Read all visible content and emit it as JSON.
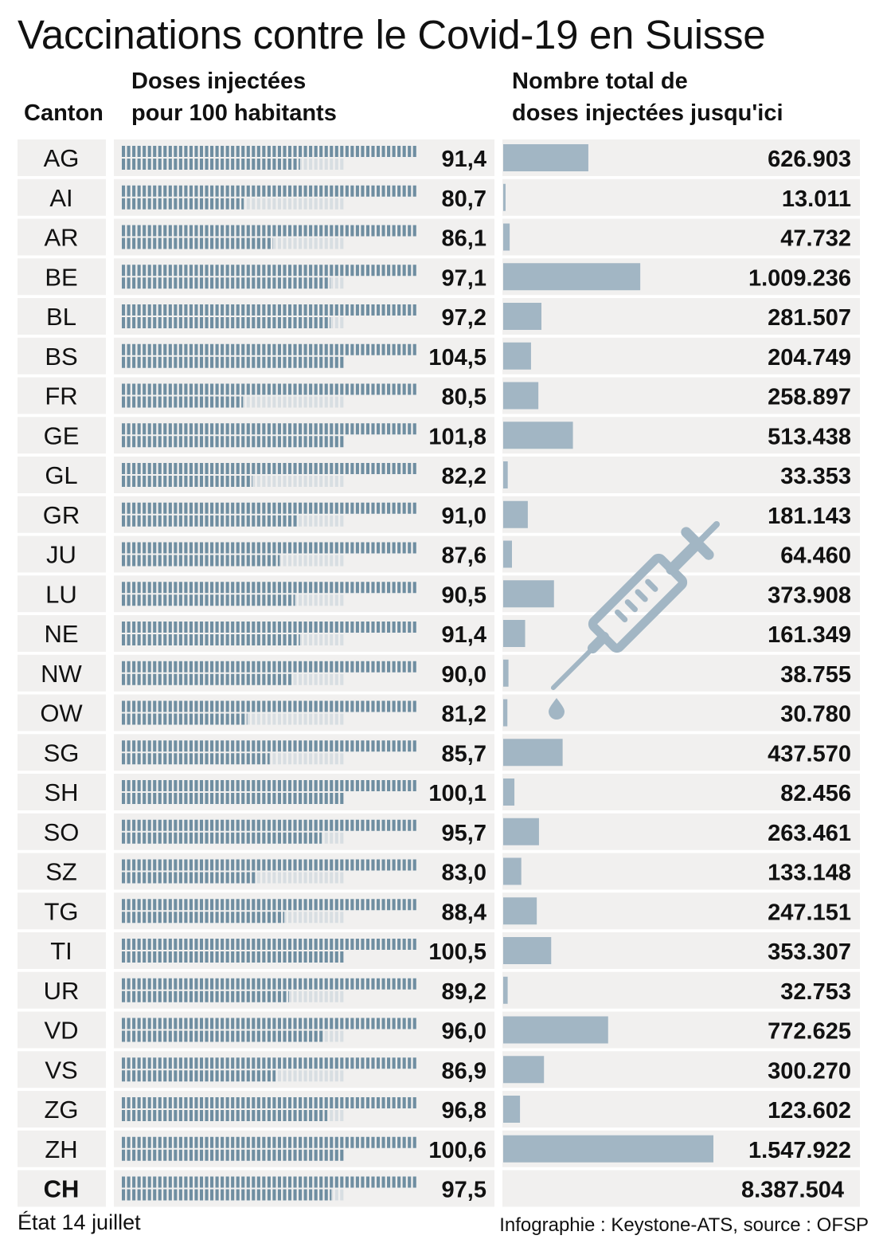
{
  "title": "Vaccinations contre le Covid-19 en Suisse",
  "headers": {
    "canton": "Canton",
    "doses_line1": "Doses injectées",
    "doses_line2": "pour 100 habitants",
    "total_line1": "Nombre total de",
    "total_line2": "doses injectées jusqu'ici"
  },
  "footer": {
    "date": "État 14 juillet",
    "source": "Infographie : Keystone-ATS, source : OFSP"
  },
  "colors": {
    "tick_filled": "#6f8ea1",
    "tick_empty": "#d8dee2",
    "bar": "#a2b6c4",
    "cell_background": "#f1f0ef",
    "icon": "#a2b6c4"
  },
  "icon": "syringe-icon",
  "chart_data": {
    "type": "table",
    "columns": [
      "Canton",
      "Doses injectées pour 100 habitants",
      "Nombre total de doses injectées jusqu'ici"
    ],
    "doses_scale_max": 100,
    "rows": [
      {
        "canton": "AG",
        "per100": 91.4,
        "per100_label": "91,4",
        "total": 626903,
        "total_label": "626.903"
      },
      {
        "canton": "AI",
        "per100": 80.7,
        "per100_label": "80,7",
        "total": 13011,
        "total_label": "13.011"
      },
      {
        "canton": "AR",
        "per100": 86.1,
        "per100_label": "86,1",
        "total": 47732,
        "total_label": "47.732"
      },
      {
        "canton": "BE",
        "per100": 97.1,
        "per100_label": "97,1",
        "total": 1009236,
        "total_label": "1.009.236"
      },
      {
        "canton": "BL",
        "per100": 97.2,
        "per100_label": "97,2",
        "total": 281507,
        "total_label": "281.507"
      },
      {
        "canton": "BS",
        "per100": 104.5,
        "per100_label": "104,5",
        "total": 204749,
        "total_label": "204.749"
      },
      {
        "canton": "FR",
        "per100": 80.5,
        "per100_label": "80,5",
        "total": 258897,
        "total_label": "258.897"
      },
      {
        "canton": "GE",
        "per100": 101.8,
        "per100_label": "101,8",
        "total": 513438,
        "total_label": "513.438"
      },
      {
        "canton": "GL",
        "per100": 82.2,
        "per100_label": "82,2",
        "total": 33353,
        "total_label": "33.353"
      },
      {
        "canton": "GR",
        "per100": 91.0,
        "per100_label": "91,0",
        "total": 181143,
        "total_label": "181.143"
      },
      {
        "canton": "JU",
        "per100": 87.6,
        "per100_label": "87,6",
        "total": 64460,
        "total_label": "64.460"
      },
      {
        "canton": "LU",
        "per100": 90.5,
        "per100_label": "90,5",
        "total": 373908,
        "total_label": "373.908"
      },
      {
        "canton": "NE",
        "per100": 91.4,
        "per100_label": "91,4",
        "total": 161349,
        "total_label": "161.349"
      },
      {
        "canton": "NW",
        "per100": 90.0,
        "per100_label": "90,0",
        "total": 38755,
        "total_label": "38.755"
      },
      {
        "canton": "OW",
        "per100": 81.2,
        "per100_label": "81,2",
        "total": 30780,
        "total_label": "30.780"
      },
      {
        "canton": "SG",
        "per100": 85.7,
        "per100_label": "85,7",
        "total": 437570,
        "total_label": "437.570"
      },
      {
        "canton": "SH",
        "per100": 100.1,
        "per100_label": "100,1",
        "total": 82456,
        "total_label": "82.456"
      },
      {
        "canton": "SO",
        "per100": 95.7,
        "per100_label": "95,7",
        "total": 263461,
        "total_label": "263.461"
      },
      {
        "canton": "SZ",
        "per100": 83.0,
        "per100_label": "83,0",
        "total": 133148,
        "total_label": "133.148"
      },
      {
        "canton": "TG",
        "per100": 88.4,
        "per100_label": "88,4",
        "total": 247151,
        "total_label": "247.151"
      },
      {
        "canton": "TI",
        "per100": 100.5,
        "per100_label": "100,5",
        "total": 353307,
        "total_label": "353.307"
      },
      {
        "canton": "UR",
        "per100": 89.2,
        "per100_label": "89,2",
        "total": 32753,
        "total_label": "32.753"
      },
      {
        "canton": "VD",
        "per100": 96.0,
        "per100_label": "96,0",
        "total": 772625,
        "total_label": "772.625"
      },
      {
        "canton": "VS",
        "per100": 86.9,
        "per100_label": "86,9",
        "total": 300270,
        "total_label": "300.270"
      },
      {
        "canton": "ZG",
        "per100": 96.8,
        "per100_label": "96,8",
        "total": 123602,
        "total_label": "123.602"
      },
      {
        "canton": "ZH",
        "per100": 100.6,
        "per100_label": "100,6",
        "total": 1547922,
        "total_label": "1.547.922"
      }
    ],
    "total_row": {
      "canton": "CH",
      "per100": 97.5,
      "per100_label": "97,5",
      "total": 8387504,
      "total_label": "8.387.504",
      "bar_shown": false
    }
  }
}
